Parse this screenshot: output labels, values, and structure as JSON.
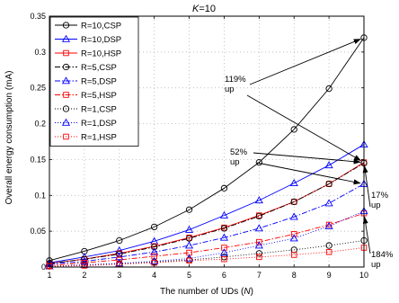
{
  "chart_data": {
    "type": "line",
    "title": "K=10",
    "title_italic_var": "K",
    "title_rest": "=10",
    "xlabel": "The number of UDs (N)",
    "xlabel_text": "The number of UDs (",
    "xlabel_var": "N",
    "xlabel_close": ")",
    "ylabel": "Overall energy consumption (mA)",
    "x": [
      1,
      2,
      3,
      4,
      5,
      6,
      7,
      8,
      9,
      10
    ],
    "xlim": [
      1,
      10
    ],
    "ylim": [
      0,
      0.35
    ],
    "xticks": [
      "1",
      "2",
      "3",
      "4",
      "5",
      "6",
      "7",
      "8",
      "9",
      "10"
    ],
    "yticks": [
      {
        "value": 0,
        "label": "0"
      },
      {
        "value": 0.05,
        "label": "0.05"
      },
      {
        "value": 0.1,
        "label": "0.1"
      },
      {
        "value": 0.15,
        "label": "0.15"
      },
      {
        "value": 0.2,
        "label": "0.2"
      },
      {
        "value": 0.25,
        "label": "0.25"
      },
      {
        "value": 0.3,
        "label": "0.3"
      },
      {
        "value": 0.35,
        "label": "0.35"
      }
    ],
    "grid": true,
    "legend_position": "top-left",
    "series": [
      {
        "name": "R=10,CSP",
        "color": "#000000",
        "marker": "circle",
        "linestyle": "solid",
        "values": [
          0.009,
          0.022,
          0.037,
          0.056,
          0.08,
          0.11,
          0.146,
          0.192,
          0.249,
          0.32
        ]
      },
      {
        "name": "R=10,DSP",
        "color": "#0000ff",
        "marker": "triangle",
        "linestyle": "solid",
        "values": [
          0.006,
          0.014,
          0.023,
          0.036,
          0.052,
          0.072,
          0.093,
          0.117,
          0.142,
          0.171
        ]
      },
      {
        "name": "R=10,HSP",
        "color": "#ff0000",
        "marker": "square",
        "linestyle": "solid",
        "values": [
          0.005,
          0.011,
          0.019,
          0.029,
          0.041,
          0.055,
          0.072,
          0.091,
          0.116,
          0.146
        ]
      },
      {
        "name": "R=5,CSP",
        "color": "#000000",
        "marker": "circle",
        "linestyle": "dashdot",
        "values": [
          0.005,
          0.011,
          0.018,
          0.028,
          0.04,
          0.054,
          0.071,
          0.091,
          0.116,
          0.145
        ]
      },
      {
        "name": "R=5,DSP",
        "color": "#0000ff",
        "marker": "triangle",
        "linestyle": "dashdot",
        "values": [
          0.004,
          0.008,
          0.014,
          0.021,
          0.03,
          0.041,
          0.054,
          0.07,
          0.089,
          0.116
        ]
      },
      {
        "name": "R=5,HSP",
        "color": "#ff0000",
        "marker": "square",
        "linestyle": "dashdot",
        "values": [
          0.002,
          0.006,
          0.01,
          0.015,
          0.02,
          0.027,
          0.035,
          0.046,
          0.059,
          0.075
        ]
      },
      {
        "name": "R=1,CSP",
        "color": "#000000",
        "marker": "circle",
        "linestyle": "dotted",
        "values": [
          0.001,
          0.003,
          0.005,
          0.007,
          0.01,
          0.014,
          0.019,
          0.024,
          0.03,
          0.037
        ]
      },
      {
        "name": "R=1,DSP",
        "color": "#0000ff",
        "marker": "triangle",
        "linestyle": "dotted",
        "values": [
          0.001,
          0.003,
          0.005,
          0.008,
          0.012,
          0.02,
          0.03,
          0.04,
          0.057,
          0.078
        ]
      },
      {
        "name": "R=1,HSP",
        "color": "#ff0000",
        "marker": "square",
        "linestyle": "dotted",
        "values": [
          0.001,
          0.002,
          0.004,
          0.006,
          0.009,
          0.011,
          0.014,
          0.017,
          0.021,
          0.027
        ]
      }
    ],
    "annotations": [
      {
        "text_lines": [
          "119%",
          "up"
        ],
        "arrows_to": [
          {
            "x": 10,
            "y": 0.32
          },
          {
            "x": 10,
            "y": 0.146
          }
        ]
      },
      {
        "text_lines": [
          "52%",
          "up"
        ],
        "arrows_to": [
          {
            "x": 10,
            "y": 0.146
          },
          {
            "x": 10,
            "y": 0.116
          }
        ]
      },
      {
        "text_lines": [
          "17%",
          "up"
        ],
        "arrows_to": [
          {
            "x": 10,
            "y": 0.146
          }
        ]
      },
      {
        "text_lines": [
          "184%",
          "up"
        ],
        "arrows_to": [
          {
            "x": 10,
            "y": 0.075
          }
        ]
      }
    ]
  }
}
